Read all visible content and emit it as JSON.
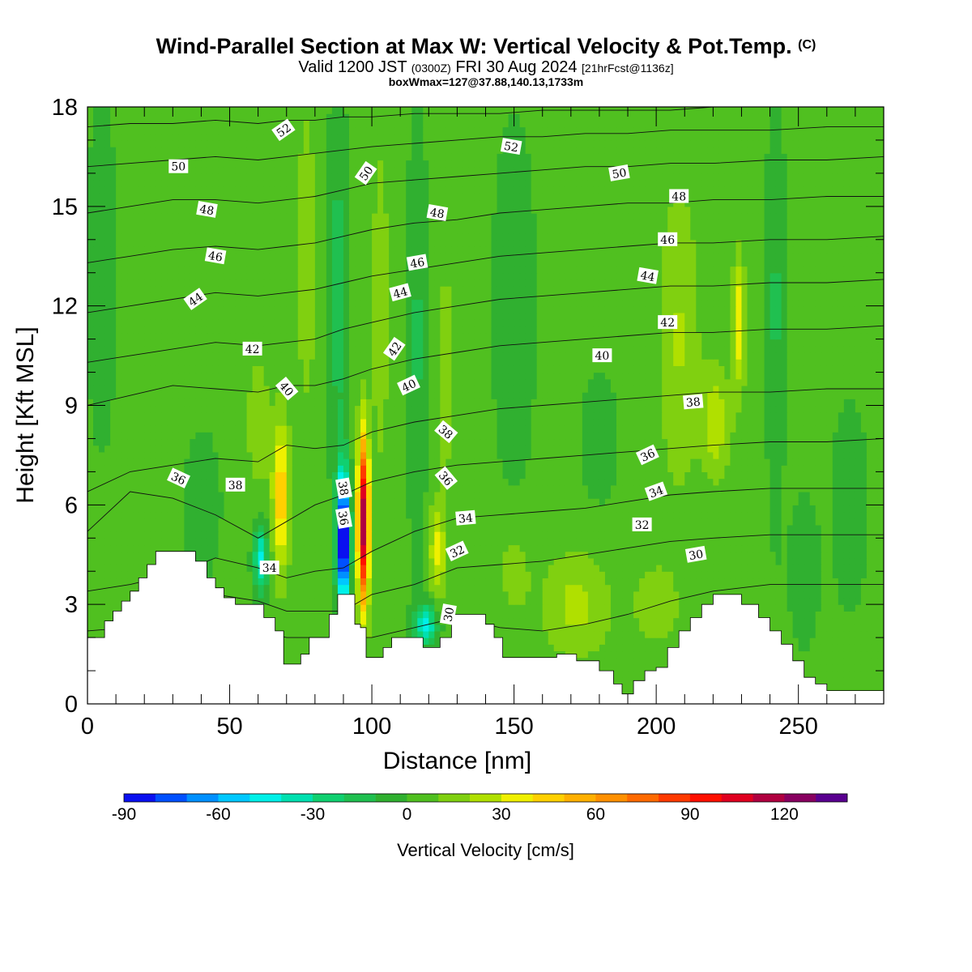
{
  "header": {
    "title_main": "Wind-Parallel Section at Max W: Vertical Velocity & Pot.Temp.",
    "title_mark": "(C)",
    "subtitle_a": "Valid 1200 JST",
    "subtitle_b": "(0300Z)",
    "subtitle_c": "FRI 30 Aug 2024",
    "subtitle_d": "[21hrFcst@1136z]",
    "subtitle_line3": "boxWmax=127@37.88,140.13,1733m"
  },
  "chart_data": {
    "type": "heatmap",
    "xlabel": "Distance [nm]",
    "ylabel": "Height [Kft MSL]",
    "xlim": [
      0,
      280
    ],
    "ylim": [
      0,
      18
    ],
    "xticks": [
      0,
      50,
      100,
      150,
      200,
      250
    ],
    "yticks": [
      0,
      3,
      6,
      9,
      12,
      15,
      18
    ],
    "colorbar": {
      "label": "Vertical Velocity [cm/s]",
      "ticks": [
        -90,
        -60,
        -30,
        0,
        30,
        60,
        90,
        120
      ],
      "levels": [
        -90,
        -80,
        -70,
        -60,
        -50,
        -40,
        -30,
        -20,
        -10,
        0,
        10,
        20,
        30,
        40,
        50,
        60,
        70,
        80,
        90,
        100,
        110,
        120,
        130,
        140
      ],
      "colors": [
        "#0a10f0",
        "#0050ff",
        "#0090ff",
        "#00c8ff",
        "#00f0e8",
        "#00e0b0",
        "#10d070",
        "#20c050",
        "#30b030",
        "#50c020",
        "#80d010",
        "#b0e000",
        "#f0f000",
        "#ffd000",
        "#ffb000",
        "#ff9000",
        "#ff6a00",
        "#ff3a00",
        "#ff1000",
        "#e00020",
        "#b00040",
        "#880060",
        "#5a0090"
      ]
    },
    "background_color": "#66cc22",
    "terrain_kft": [
      [
        0,
        2.0
      ],
      [
        5,
        2.0
      ],
      [
        6,
        2.5
      ],
      [
        9,
        2.8
      ],
      [
        12,
        3.1
      ],
      [
        15,
        3.4
      ],
      [
        18,
        3.8
      ],
      [
        21,
        4.2
      ],
      [
        24,
        4.6
      ],
      [
        32,
        4.6
      ],
      [
        36,
        4.6
      ],
      [
        38,
        4.3
      ],
      [
        42,
        3.8
      ],
      [
        45,
        3.5
      ],
      [
        48,
        3.2
      ],
      [
        52,
        3.0
      ],
      [
        58,
        3.0
      ],
      [
        62,
        2.6
      ],
      [
        66,
        2.2
      ],
      [
        69,
        1.2
      ],
      [
        72,
        1.2
      ],
      [
        75,
        1.5
      ],
      [
        78,
        2.0
      ],
      [
        82,
        2.0
      ],
      [
        85,
        2.7
      ],
      [
        88,
        3.3
      ],
      [
        93,
        3.3
      ],
      [
        94,
        2.4
      ],
      [
        95,
        2.4
      ],
      [
        96,
        2.3
      ],
      [
        98,
        1.4
      ],
      [
        102,
        1.4
      ],
      [
        104,
        1.7
      ],
      [
        107,
        2.0
      ],
      [
        112,
        2.0
      ],
      [
        116,
        2.0
      ],
      [
        118,
        1.7
      ],
      [
        122,
        1.7
      ],
      [
        124,
        2.0
      ],
      [
        128,
        2.7
      ],
      [
        132,
        2.7
      ],
      [
        136,
        2.7
      ],
      [
        140,
        2.4
      ],
      [
        143,
        2.0
      ],
      [
        146,
        1.4
      ],
      [
        152,
        1.4
      ],
      [
        160,
        1.4
      ],
      [
        165,
        1.5
      ],
      [
        168,
        1.5
      ],
      [
        172,
        1.3
      ],
      [
        176,
        1.3
      ],
      [
        180,
        1.0
      ],
      [
        185,
        0.6
      ],
      [
        188,
        0.3
      ],
      [
        192,
        0.7
      ],
      [
        196,
        1.0
      ],
      [
        200,
        1.1
      ],
      [
        204,
        1.7
      ],
      [
        208,
        2.2
      ],
      [
        212,
        2.6
      ],
      [
        216,
        3.0
      ],
      [
        220,
        3.3
      ],
      [
        226,
        3.3
      ],
      [
        230,
        3.0
      ],
      [
        236,
        2.6
      ],
      [
        240,
        2.2
      ],
      [
        244,
        1.8
      ],
      [
        248,
        1.3
      ],
      [
        252,
        0.8
      ],
      [
        256,
        0.6
      ],
      [
        260,
        0.4
      ],
      [
        264,
        0.4
      ],
      [
        280,
        0.4
      ]
    ],
    "velocity_features": [
      {
        "x": 90,
        "y": 5.0,
        "sx": 2.2,
        "sy": 2.0,
        "w": -110
      },
      {
        "x": 97,
        "y": 5.5,
        "sx": 2.0,
        "sy": 2.6,
        "w": 115
      },
      {
        "x": 68,
        "y": 6.3,
        "sx": 3.0,
        "sy": 2.3,
        "w": 45
      },
      {
        "x": 61,
        "y": 4.4,
        "sx": 2.5,
        "sy": 1.0,
        "w": -45
      },
      {
        "x": 123,
        "y": 4.6,
        "sx": 2.8,
        "sy": 1.4,
        "w": 30
      },
      {
        "x": 119,
        "y": 2.4,
        "sx": 4.0,
        "sy": 0.6,
        "w": -45
      },
      {
        "x": 229,
        "y": 11.5,
        "sx": 2.2,
        "sy": 2.0,
        "w": 35
      },
      {
        "x": 221,
        "y": 8.5,
        "sx": 5.0,
        "sy": 1.6,
        "w": 25
      },
      {
        "x": 208,
        "y": 11.0,
        "sx": 7.0,
        "sy": 4.5,
        "w": 18
      },
      {
        "x": 172,
        "y": 3.0,
        "sx": 12.0,
        "sy": 1.6,
        "w": 20
      },
      {
        "x": 200,
        "y": 3.0,
        "sx": 8.0,
        "sy": 1.2,
        "w": 15
      },
      {
        "x": 60,
        "y": 8.5,
        "sx": 4.0,
        "sy": 2.0,
        "w": 15
      },
      {
        "x": 103,
        "y": 12.0,
        "sx": 3.0,
        "sy": 5.0,
        "w": 15
      },
      {
        "x": 126,
        "y": 10.0,
        "sx": 3.0,
        "sy": 4.0,
        "w": 12
      },
      {
        "x": 77,
        "y": 13.5,
        "sx": 3.5,
        "sy": 5.0,
        "w": 14
      },
      {
        "x": 88,
        "y": 12.5,
        "sx": 3.0,
        "sy": 6.0,
        "w": -18
      },
      {
        "x": 116,
        "y": 11.0,
        "sx": 3.0,
        "sy": 7.0,
        "w": -15
      },
      {
        "x": 242,
        "y": 12.0,
        "sx": 3.0,
        "sy": 6.0,
        "w": -15
      },
      {
        "x": 40,
        "y": 6.0,
        "sx": 6.0,
        "sy": 2.0,
        "w": -12
      },
      {
        "x": 5,
        "y": 13.0,
        "sx": 5.0,
        "sy": 5.0,
        "w": -10
      },
      {
        "x": 150,
        "y": 12.0,
        "sx": 8.0,
        "sy": 6.0,
        "w": -8
      },
      {
        "x": 252,
        "y": 4.0,
        "sx": 5.0,
        "sy": 2.0,
        "w": -12
      },
      {
        "x": 268,
        "y": 6.0,
        "sx": 6.0,
        "sy": 3.0,
        "w": -10
      },
      {
        "x": 180,
        "y": 8.0,
        "sx": 8.0,
        "sy": 2.5,
        "w": -6
      },
      {
        "x": 150,
        "y": 4.0,
        "sx": 6.0,
        "sy": 1.5,
        "w": 12
      },
      {
        "x": 30,
        "y": 12.0,
        "sx": 8.0,
        "sy": 3.0,
        "w": 6
      },
      {
        "x": 265,
        "y": 15.0,
        "sx": 10.0,
        "sy": 3.0,
        "w": 6
      }
    ],
    "theta_contour_heights_kft": [
      {
        "theta": 30,
        "h": [
          1.2,
          1.3,
          1.5,
          2.3,
          2.2,
          2.0,
          2.0,
          2.0,
          2.0,
          2.3,
          2.6,
          2.3,
          2.2,
          2.4,
          2.7,
          3.1,
          3.4,
          3.6,
          3.6,
          3.6
        ]
      },
      {
        "theta": 32,
        "h": [
          2.2,
          2.3,
          2.5,
          3.3,
          3.1,
          2.8,
          2.8,
          2.8,
          3.3,
          3.6,
          4.1,
          4.2,
          4.3,
          4.5,
          4.7,
          4.9,
          5.0,
          5.1,
          5.1,
          5.1
        ]
      },
      {
        "theta": 34,
        "h": [
          3.4,
          3.6,
          3.9,
          4.4,
          4.1,
          3.8,
          4.0,
          4.1,
          4.6,
          5.2,
          5.6,
          5.7,
          5.8,
          5.9,
          6.1,
          6.3,
          6.4,
          6.5,
          6.5,
          6.5
        ]
      },
      {
        "theta": 36,
        "h": [
          5.2,
          6.4,
          6.2,
          5.7,
          5.0,
          5.5,
          6.0,
          6.3,
          6.7,
          7.0,
          7.2,
          7.3,
          7.4,
          7.5,
          7.6,
          7.7,
          7.8,
          7.9,
          7.9,
          8.0
        ]
      },
      {
        "theta": 38,
        "h": [
          6.4,
          7.0,
          7.2,
          7.4,
          7.3,
          7.8,
          7.7,
          7.8,
          8.2,
          8.5,
          8.7,
          8.9,
          9.0,
          9.1,
          9.2,
          9.3,
          9.4,
          9.4,
          9.5,
          9.5
        ]
      },
      {
        "theta": 40,
        "h": [
          9.0,
          9.3,
          9.6,
          9.5,
          9.4,
          9.6,
          9.6,
          9.8,
          10.1,
          10.4,
          10.6,
          10.8,
          10.9,
          11.0,
          11.1,
          11.2,
          11.2,
          11.3,
          11.3,
          11.4
        ]
      },
      {
        "theta": 42,
        "h": [
          10.3,
          10.5,
          10.7,
          10.9,
          10.8,
          10.9,
          11.0,
          11.3,
          11.5,
          11.8,
          12.0,
          12.2,
          12.3,
          12.4,
          12.5,
          12.6,
          12.6,
          12.7,
          12.7,
          12.8
        ]
      },
      {
        "theta": 44,
        "h": [
          11.8,
          12.0,
          12.2,
          12.4,
          12.3,
          12.4,
          12.5,
          12.7,
          12.9,
          13.1,
          13.3,
          13.5,
          13.6,
          13.7,
          13.8,
          13.9,
          13.9,
          14.0,
          14.0,
          14.1
        ]
      },
      {
        "theta": 46,
        "h": [
          13.3,
          13.5,
          13.7,
          13.8,
          13.7,
          13.8,
          13.9,
          14.1,
          14.3,
          14.5,
          14.6,
          14.8,
          14.9,
          15.0,
          15.1,
          15.1,
          15.2,
          15.2,
          15.3,
          15.3
        ]
      },
      {
        "theta": 48,
        "h": [
          14.8,
          15.0,
          15.2,
          15.2,
          15.1,
          15.2,
          15.3,
          15.5,
          15.7,
          15.8,
          15.9,
          16.0,
          16.1,
          16.2,
          16.2,
          16.3,
          16.3,
          16.4,
          16.4,
          16.5
        ]
      },
      {
        "theta": 50,
        "h": [
          16.2,
          16.3,
          16.4,
          16.5,
          16.4,
          16.5,
          16.6,
          16.7,
          16.8,
          16.9,
          17.0,
          17.1,
          17.1,
          17.2,
          17.2,
          17.3,
          17.3,
          17.3,
          17.4,
          17.4
        ]
      },
      {
        "theta": 52,
        "h": [
          17.4,
          17.5,
          17.5,
          17.6,
          17.5,
          17.6,
          17.6,
          17.7,
          17.7,
          17.8,
          17.8,
          17.8,
          17.9,
          17.9,
          17.9,
          17.9,
          18.0,
          18.0,
          18.0,
          18.0
        ]
      }
    ],
    "theta_contour_x_nm": [
      0,
      15,
      30,
      45,
      60,
      70,
      80,
      90,
      100,
      115,
      130,
      145,
      160,
      175,
      190,
      205,
      220,
      240,
      260,
      280
    ],
    "contour_labels": [
      {
        "text": "52",
        "x": 69,
        "y": 17.3,
        "angle": -35
      },
      {
        "text": "50",
        "x": 32,
        "y": 16.2,
        "angle": 0
      },
      {
        "text": "50",
        "x": 98,
        "y": 16.0,
        "angle": -55
      },
      {
        "text": "52",
        "x": 149,
        "y": 16.8,
        "angle": 10
      },
      {
        "text": "50",
        "x": 187,
        "y": 16.0,
        "angle": -10
      },
      {
        "text": "48",
        "x": 42,
        "y": 14.9,
        "angle": 10
      },
      {
        "text": "48",
        "x": 123,
        "y": 14.8,
        "angle": 10
      },
      {
        "text": "48",
        "x": 208,
        "y": 15.3,
        "angle": 0
      },
      {
        "text": "46",
        "x": 45,
        "y": 13.5,
        "angle": 10
      },
      {
        "text": "46",
        "x": 116,
        "y": 13.3,
        "angle": -10
      },
      {
        "text": "46",
        "x": 204,
        "y": 14.0,
        "angle": 0
      },
      {
        "text": "44",
        "x": 38,
        "y": 12.2,
        "angle": -35
      },
      {
        "text": "44",
        "x": 110,
        "y": 12.4,
        "angle": -15
      },
      {
        "text": "44",
        "x": 197,
        "y": 12.9,
        "angle": 10
      },
      {
        "text": "42",
        "x": 58,
        "y": 10.7,
        "angle": 0
      },
      {
        "text": "42",
        "x": 108,
        "y": 10.7,
        "angle": -55
      },
      {
        "text": "42",
        "x": 204,
        "y": 11.5,
        "angle": 0
      },
      {
        "text": "40",
        "x": 70,
        "y": 9.5,
        "angle": 50
      },
      {
        "text": "40",
        "x": 113,
        "y": 9.6,
        "angle": -25
      },
      {
        "text": "40",
        "x": 181,
        "y": 10.5,
        "angle": 0
      },
      {
        "text": "38",
        "x": 213,
        "y": 9.1,
        "angle": -5
      },
      {
        "text": "38",
        "x": 126,
        "y": 8.2,
        "angle": 40
      },
      {
        "text": "38",
        "x": 52,
        "y": 6.6,
        "angle": 0
      },
      {
        "text": "36",
        "x": 32,
        "y": 6.8,
        "angle": 25
      },
      {
        "text": "36",
        "x": 197,
        "y": 7.5,
        "angle": -25
      },
      {
        "text": "38",
        "x": 90,
        "y": 6.5,
        "angle": 80
      },
      {
        "text": "36",
        "x": 90,
        "y": 5.6,
        "angle": 80
      },
      {
        "text": "36",
        "x": 126,
        "y": 6.8,
        "angle": 50
      },
      {
        "text": "34",
        "x": 133,
        "y": 5.6,
        "angle": -5
      },
      {
        "text": "34",
        "x": 200,
        "y": 6.4,
        "angle": -20
      },
      {
        "text": "34",
        "x": 64,
        "y": 4.1,
        "angle": 0
      },
      {
        "text": "32",
        "x": 130,
        "y": 4.6,
        "angle": -25
      },
      {
        "text": "32",
        "x": 195,
        "y": 5.4,
        "angle": 0
      },
      {
        "text": "30",
        "x": 214,
        "y": 4.5,
        "angle": -10
      },
      {
        "text": "30",
        "x": 127,
        "y": 2.7,
        "angle": -80
      }
    ]
  }
}
